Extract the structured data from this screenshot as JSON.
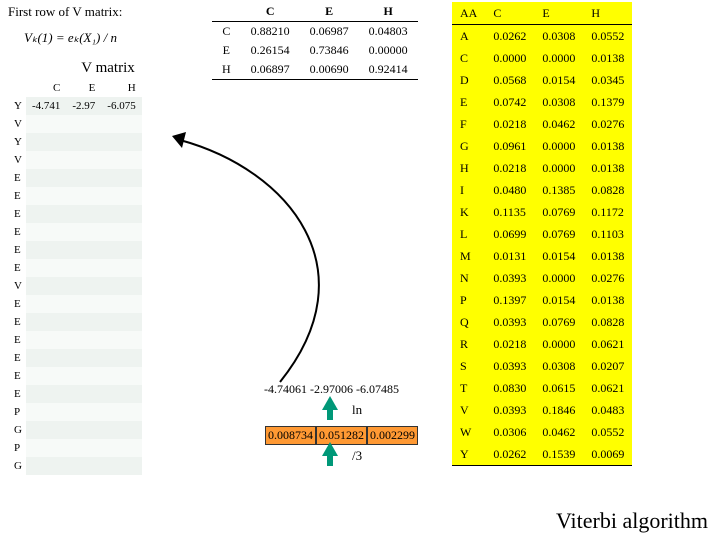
{
  "left": {
    "label": "First row of V matrix:",
    "formula": "Vₖ(1) = eₖ(X₁) / n",
    "title": "V matrix",
    "headers": [
      "C",
      "E",
      "H"
    ],
    "rows": [
      "Y",
      "V",
      "Y",
      "V",
      "E",
      "E",
      "E",
      "E",
      "E",
      "E",
      "V",
      "E",
      "E",
      "E",
      "E",
      "E",
      "E",
      "P",
      "G",
      "P",
      "G"
    ],
    "first_vals": [
      "-4.741",
      "-2.97",
      "-6.075"
    ]
  },
  "ceh": {
    "cols": [
      "C",
      "E",
      "H"
    ],
    "rows": [
      {
        "h": "C",
        "v": [
          "0.88210",
          "0.06987",
          "0.04803"
        ]
      },
      {
        "h": "E",
        "v": [
          "0.26154",
          "0.73846",
          "0.00000"
        ]
      },
      {
        "h": "H",
        "v": [
          "0.06897",
          "0.00690",
          "0.92414"
        ]
      }
    ]
  },
  "aa": {
    "cols": [
      "AA",
      "C",
      "E",
      "H"
    ],
    "rows": [
      [
        "A",
        "0.0262",
        "0.0308",
        "0.0552"
      ],
      [
        "C",
        "0.0000",
        "0.0000",
        "0.0138"
      ],
      [
        "D",
        "0.0568",
        "0.0154",
        "0.0345"
      ],
      [
        "E",
        "0.0742",
        "0.0308",
        "0.1379"
      ],
      [
        "F",
        "0.0218",
        "0.0462",
        "0.0276"
      ],
      [
        "G",
        "0.0961",
        "0.0000",
        "0.0138"
      ],
      [
        "H",
        "0.0218",
        "0.0000",
        "0.0138"
      ],
      [
        "I",
        "0.0480",
        "0.1385",
        "0.0828"
      ],
      [
        "K",
        "0.1135",
        "0.0769",
        "0.1172"
      ],
      [
        "L",
        "0.0699",
        "0.0769",
        "0.1103"
      ],
      [
        "M",
        "0.0131",
        "0.0154",
        "0.0138"
      ],
      [
        "N",
        "0.0393",
        "0.0000",
        "0.0276"
      ],
      [
        "P",
        "0.1397",
        "0.0154",
        "0.0138"
      ],
      [
        "Q",
        "0.0393",
        "0.0769",
        "0.0828"
      ],
      [
        "R",
        "0.0218",
        "0.0000",
        "0.0621"
      ],
      [
        "S",
        "0.0393",
        "0.0308",
        "0.0207"
      ],
      [
        "T",
        "0.0830",
        "0.0615",
        "0.0621"
      ],
      [
        "V",
        "0.0393",
        "0.1846",
        "0.0483"
      ],
      [
        "W",
        "0.0306",
        "0.0462",
        "0.0552"
      ],
      [
        "Y",
        "0.0262",
        "0.1539",
        "0.0069"
      ]
    ]
  },
  "mid": {
    "logs": "-4.74061 -2.97006 -6.07485",
    "ln": "ln",
    "orange": [
      "0.008734",
      "0.051282",
      "0.002299"
    ],
    "div3": "/3"
  },
  "footer": "Viterbi algorithm"
}
